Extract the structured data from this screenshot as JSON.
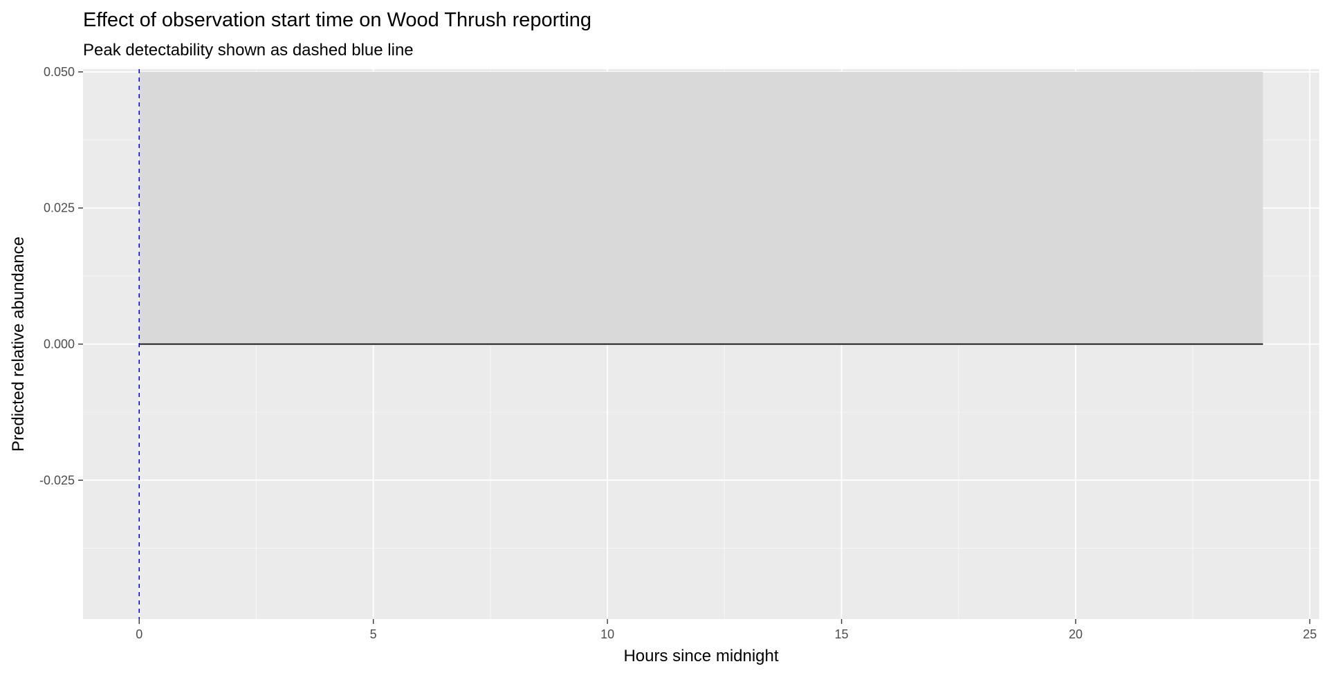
{
  "chart_data": {
    "type": "line",
    "title": "Effect of observation start time on Wood Thrush reporting",
    "subtitle": "Peak detectability shown as dashed blue line",
    "xlabel": "Hours since midnight",
    "ylabel": "Predicted relative abundance",
    "xlim": [
      -1.2,
      25.2
    ],
    "ylim": [
      -0.0505,
      0.0505
    ],
    "x_ticks": [
      0,
      5,
      10,
      15,
      20,
      25
    ],
    "x_tick_labels": [
      "0",
      "5",
      "10",
      "15",
      "20",
      "25"
    ],
    "y_ticks": [
      -0.025,
      0,
      0.025,
      0.05
    ],
    "y_tick_labels": [
      "-0.025",
      "0.000",
      "0.025",
      "0.050"
    ],
    "grid": true,
    "legend": "none",
    "series": [
      {
        "x": [
          0,
          24
        ],
        "y": [
          0,
          0
        ],
        "ribbon_lower": [
          0,
          0
        ],
        "ribbon_upper": [
          0.05,
          0.05
        ]
      }
    ],
    "vline": {
      "x": 0,
      "style": "dashed",
      "color": "#0000ff"
    },
    "colors": {
      "panel_background": "#ebebeb",
      "grid": "#ffffff",
      "ribbon": "#d9d9d9",
      "line": "#000000",
      "tick_text": "#4d4d4d",
      "tick_mark": "#333333"
    }
  }
}
